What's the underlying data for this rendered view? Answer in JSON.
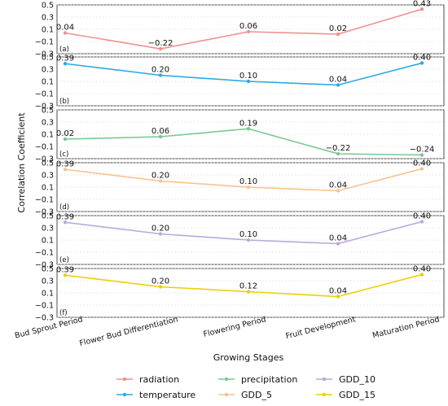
{
  "chart_data": {
    "type": "line",
    "ylabel": "Correlation Coefficient",
    "xlabel": "Growing Stages",
    "categories": [
      "Bud Sprout Period",
      "Flower Bud Differentiation",
      "Flowering Period",
      "Fruit Development",
      "Maturation Period"
    ],
    "ylim": [
      -0.3,
      0.5
    ],
    "yticks": [
      "0.5",
      "0.3",
      "0.1",
      "−0.1",
      "−0.3"
    ],
    "grid": true,
    "legend_position": "bottom",
    "panels": [
      {
        "label": "(a)",
        "series": "radiation",
        "color": "#f28e8e",
        "values": [
          0.04,
          -0.22,
          0.06,
          0.02,
          0.43
        ],
        "value_labels": [
          "0.04",
          "−0.22",
          "0.06",
          "0.02",
          "0.43"
        ]
      },
      {
        "label": "(b)",
        "series": "temperature",
        "color": "#29a9e6",
        "values": [
          0.39,
          0.2,
          0.1,
          0.04,
          0.4
        ],
        "value_labels": [
          "0.39",
          "0.20",
          "0.10",
          "0.04",
          "0.40"
        ]
      },
      {
        "label": "(c)",
        "series": "precipitation",
        "color": "#77c98f",
        "values": [
          0.02,
          0.06,
          0.19,
          -0.22,
          -0.24
        ],
        "value_labels": [
          "0.02",
          "0.06",
          "0.19",
          "−0.22",
          "−0.24"
        ]
      },
      {
        "label": "(d)",
        "series": "GDD_5",
        "color": "#f7c28f",
        "values": [
          0.39,
          0.2,
          0.1,
          0.04,
          0.4
        ],
        "value_labels": [
          "0.39",
          "0.20",
          "0.10",
          "0.04",
          "0.40"
        ]
      },
      {
        "label": "(e)",
        "series": "GDD_10",
        "color": "#bba7dc",
        "values": [
          0.39,
          0.2,
          0.1,
          0.04,
          0.4
        ],
        "value_labels": [
          "0.39",
          "0.20",
          "0.10",
          "0.04",
          "0.40"
        ]
      },
      {
        "label": "(f)",
        "series": "GDD_15",
        "color": "#ebd000",
        "values": [
          0.39,
          0.2,
          0.12,
          0.04,
          0.4
        ],
        "value_labels": [
          "0.39",
          "0.20",
          "0.12",
          "0.04",
          "0.40"
        ]
      }
    ],
    "legend": [
      {
        "name": "radiation",
        "color": "#f28e8e"
      },
      {
        "name": "temperature",
        "color": "#29a9e6"
      },
      {
        "name": "precipitation",
        "color": "#77c98f"
      },
      {
        "name": "GDD_5",
        "color": "#f7c28f"
      },
      {
        "name": "GDD_10",
        "color": "#bba7dc"
      },
      {
        "name": "GDD_15",
        "color": "#ebd000"
      }
    ]
  }
}
